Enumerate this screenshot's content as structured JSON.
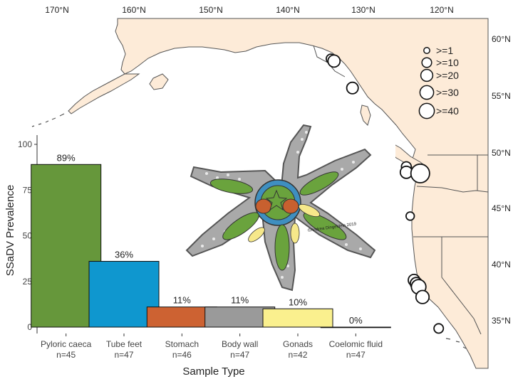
{
  "map": {
    "longitude_labels": [
      "170°N",
      "160°N",
      "150°N",
      "140°N",
      "130°N",
      "120°N"
    ],
    "latitude_labels": [
      "60°N",
      "55°N",
      "50°N",
      "45°N",
      "40°N",
      "35°N"
    ],
    "size_legend": [
      ">=1",
      ">=10",
      ">=20",
      ">=30",
      ">=40"
    ],
    "land_color": "#fdebd8",
    "coast_color": "#555555",
    "sites": [
      {
        "lat": 58.5,
        "lon": -134.4,
        "count": 5
      },
      {
        "lat": 58.3,
        "lon": -134.0,
        "count": 12
      },
      {
        "lat": 55.9,
        "lon": -131.6,
        "count": 10
      },
      {
        "lat": 48.9,
        "lon": -124.6,
        "count": 6
      },
      {
        "lat": 48.4,
        "lon": -124.6,
        "count": 12
      },
      {
        "lat": 48.5,
        "lon": -123.3,
        "count": 5
      },
      {
        "lat": 48.3,
        "lon": -122.8,
        "count": 40
      },
      {
        "lat": 44.5,
        "lon": -124.1,
        "count": 3
      },
      {
        "lat": 38.8,
        "lon": -123.6,
        "count": 10
      },
      {
        "lat": 38.5,
        "lon": -123.3,
        "count": 12
      },
      {
        "lat": 38.2,
        "lon": -123.0,
        "count": 20
      },
      {
        "lat": 37.3,
        "lon": -122.5,
        "count": 15
      },
      {
        "lat": 34.5,
        "lon": -120.4,
        "count": 5
      }
    ]
  },
  "chart_data": {
    "type": "bar",
    "ylabel": "SSaDV Prevalence",
    "xlabel": "Sample Type",
    "ylim": [
      0,
      100
    ],
    "yticks": [
      0,
      25,
      50,
      75,
      100
    ],
    "categories": [
      "Pyloric caeca",
      "Tube feet",
      "Stomach",
      "Body wall",
      "Gonads",
      "Coelomic fluid"
    ],
    "sample_sizes": [
      "n=45",
      "n=47",
      "n=46",
      "n=47",
      "n=42",
      "n=47"
    ],
    "values": [
      89,
      36,
      11,
      11,
      10,
      0
    ],
    "value_labels": [
      "89%",
      "36%",
      "11%",
      "11%",
      "10%",
      "0%"
    ],
    "colors": [
      "#66973b",
      "#0f97cf",
      "#cd6232",
      "#9a9a9a",
      "#faf08e",
      "#ffffff"
    ]
  },
  "illustration": {
    "signature": "©Andrea Dingeldein 2019"
  }
}
